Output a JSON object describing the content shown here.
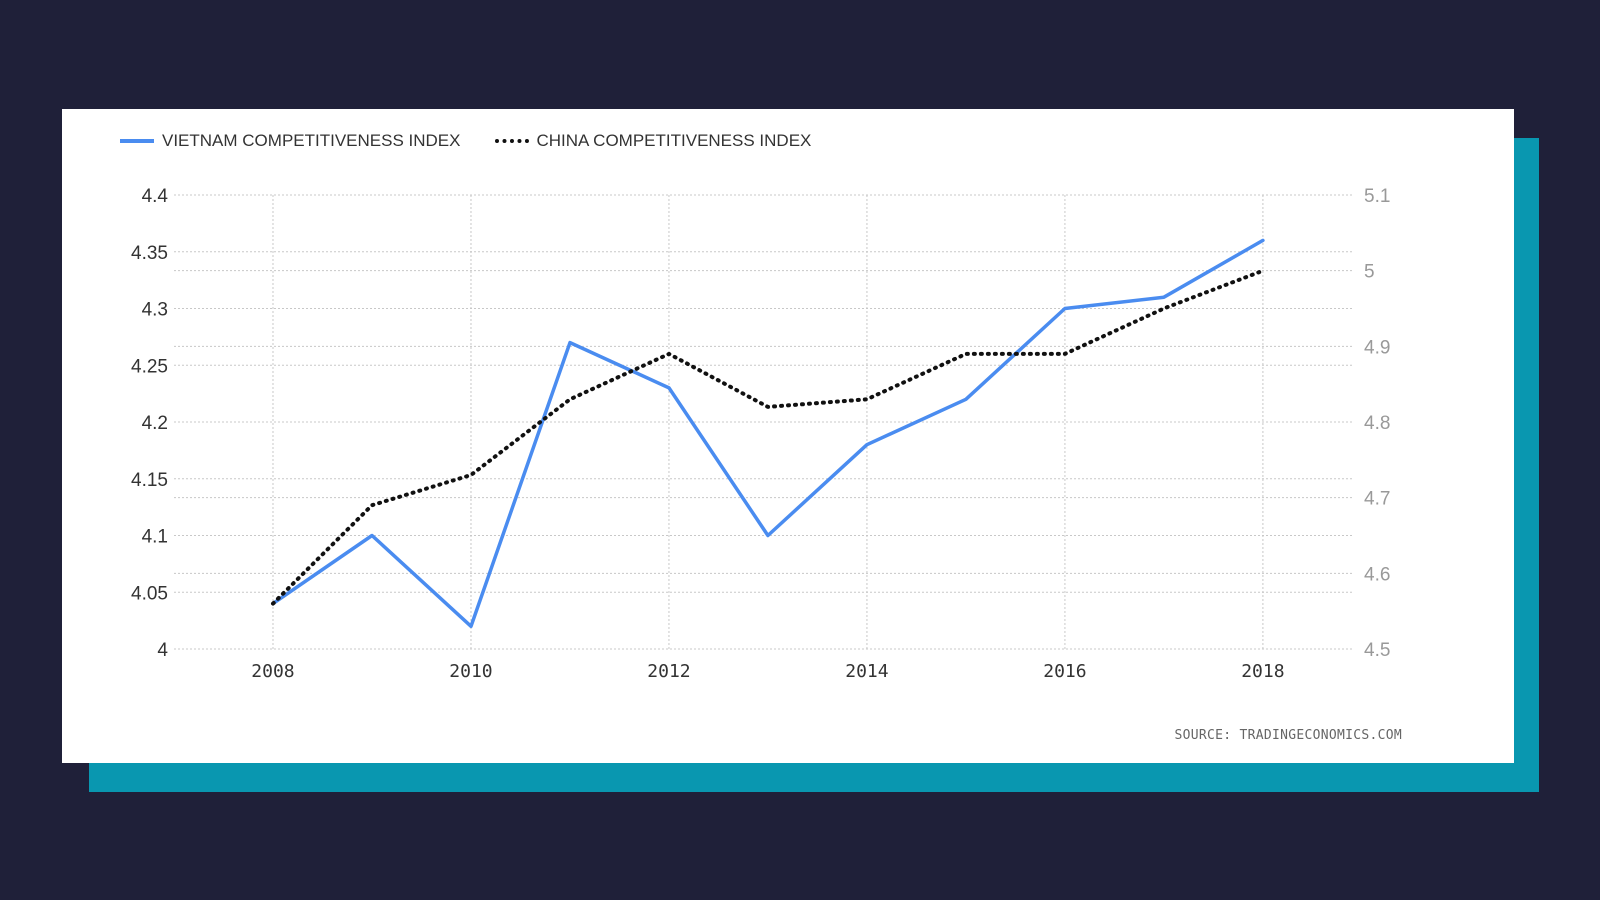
{
  "chart_data": {
    "type": "line",
    "x": [
      2008,
      2009,
      2010,
      2011,
      2012,
      2013,
      2014,
      2015,
      2016,
      2017,
      2018
    ],
    "series": [
      {
        "name": "VIETNAM COMPETITIVENESS INDEX",
        "axis": "left",
        "color": "#4a8cf0",
        "style": "solid",
        "values": [
          4.04,
          4.1,
          4.02,
          4.27,
          4.23,
          4.1,
          4.18,
          4.22,
          4.3,
          4.31,
          4.36
        ]
      },
      {
        "name": "CHINA COMPETITIVENESS INDEX",
        "axis": "right",
        "color": "#111111",
        "style": "dotted",
        "values": [
          4.56,
          4.69,
          4.73,
          4.83,
          4.89,
          4.82,
          4.83,
          4.89,
          4.89,
          4.95,
          5.0
        ]
      }
    ],
    "x_ticks": [
      "2008",
      "2010",
      "2012",
      "2014",
      "2016",
      "2018"
    ],
    "y_left": {
      "ylim": [
        4.0,
        4.4
      ],
      "ticks": [
        "4",
        "4.05",
        "4.1",
        "4.15",
        "4.2",
        "4.25",
        "4.3",
        "4.35",
        "4.4"
      ]
    },
    "y_right": {
      "ylim": [
        4.5,
        5.1
      ],
      "ticks": [
        "4.5",
        "4.6",
        "4.7",
        "4.8",
        "4.9",
        "5",
        "5.1"
      ]
    },
    "xlim": [
      2007,
      2018.9
    ],
    "grid": true,
    "legend_position": "top-left"
  },
  "source_text": "SOURCE: TRADINGECONOMICS.COM"
}
